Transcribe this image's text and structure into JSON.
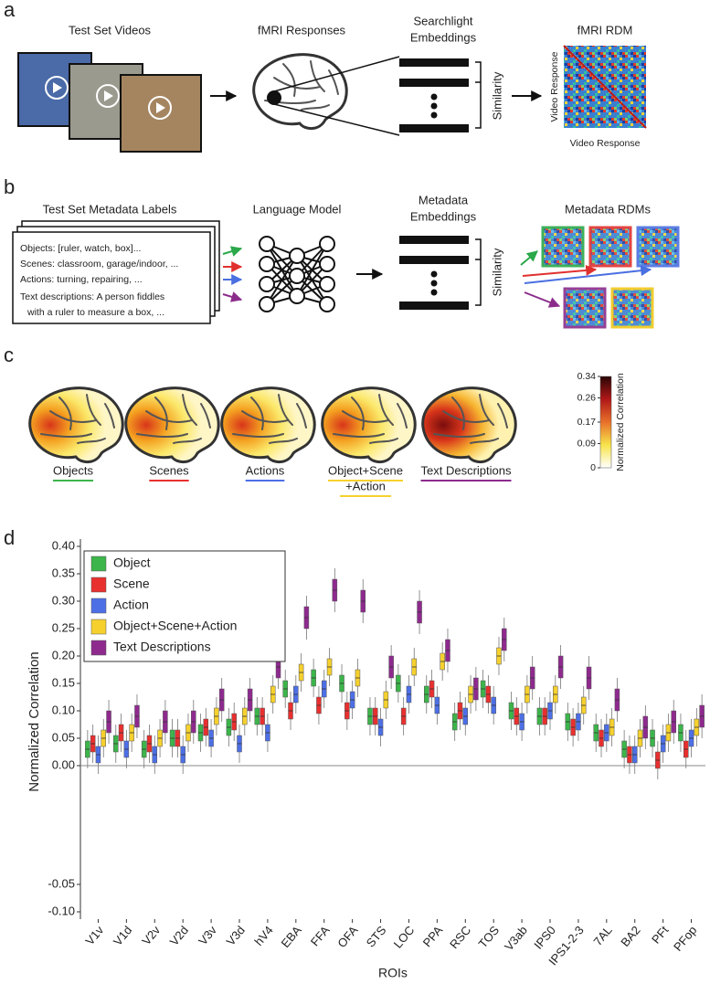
{
  "panel_a": {
    "label": "a",
    "videos_title": "Test Set Videos",
    "fmri_title": "fMRI Responses",
    "embeddings_title": [
      "Searchlight",
      "Embeddings"
    ],
    "similarity": "Similarity",
    "rdm_title": "fMRI RDM",
    "rdm_axis": "Video Response"
  },
  "panel_b": {
    "label": "b",
    "metadata_title": "Test Set Metadata Labels",
    "metadata_lines": [
      {
        "text": "Objects: [ruler, watch, box]...",
        "color": "#2aa84a"
      },
      {
        "text": "Scenes: classroom, garage/indoor, ...",
        "color": "#e0302e"
      },
      {
        "text": "Actions: turning, repairing, ...",
        "color": "#4a6fe0"
      },
      {
        "text": "Text descriptions: A person fiddles",
        "color": "#8b2c8b"
      },
      {
        "text": "with a ruler to measure a box, ...",
        "color": "#8b2c8b"
      }
    ],
    "model_title": "Language Model",
    "embeddings_title": [
      "Metadata",
      "Embeddings"
    ],
    "similarity": "Similarity",
    "rdms_title": "Metadata RDMs"
  },
  "panel_c": {
    "label": "c",
    "maps": [
      {
        "lines": [
          "Objects"
        ],
        "color": "#3cb54a"
      },
      {
        "lines": [
          "Scenes"
        ],
        "color": "#e8302f"
      },
      {
        "lines": [
          "Actions"
        ],
        "color": "#4d6fe6"
      },
      {
        "lines": [
          "Object+Scene",
          "+Action"
        ],
        "color": "#f6d12e"
      },
      {
        "lines": [
          "Text Descriptions"
        ],
        "color": "#8e2a8e"
      }
    ],
    "colorbar": {
      "label": "Normalized Correlation",
      "lim": [
        0,
        0.34
      ],
      "ticks": [
        0,
        0.09,
        0.17,
        0.26,
        0.34
      ]
    }
  },
  "chart_data": {
    "type": "box",
    "panel_label": "d",
    "ylabel": "Normalized Correlation",
    "xlabel": "ROIs",
    "categories": [
      "V1v",
      "V1d",
      "V2v",
      "V2d",
      "V3v",
      "V3d",
      "hV4",
      "EBA",
      "FFA",
      "OFA",
      "STS",
      "LOC",
      "PPA",
      "RSC",
      "TOS",
      "V3ab",
      "IPS0",
      "IPS1-2-3",
      "7AL",
      "BA2",
      "PFt",
      "PFop"
    ],
    "series": [
      {
        "name": "Object",
        "color": "#3cb54a",
        "whislo": [
          -0.005,
          0.005,
          -0.005,
          0.015,
          0.025,
          0.035,
          0.055,
          0.105,
          0.125,
          0.115,
          0.055,
          0.115,
          0.095,
          0.045,
          0.105,
          0.065,
          0.055,
          0.045,
          0.025,
          -0.005,
          0.015,
          0.025
        ],
        "q1": [
          0.015,
          0.025,
          0.015,
          0.035,
          0.045,
          0.055,
          0.075,
          0.125,
          0.145,
          0.135,
          0.075,
          0.135,
          0.115,
          0.065,
          0.125,
          0.085,
          0.075,
          0.065,
          0.045,
          0.015,
          0.035,
          0.045
        ],
        "median": [
          0.03,
          0.04,
          0.03,
          0.05,
          0.06,
          0.07,
          0.09,
          0.14,
          0.16,
          0.15,
          0.09,
          0.15,
          0.13,
          0.08,
          0.14,
          0.1,
          0.09,
          0.08,
          0.06,
          0.03,
          0.05,
          0.06
        ],
        "q3": [
          0.045,
          0.055,
          0.045,
          0.065,
          0.075,
          0.085,
          0.105,
          0.155,
          0.175,
          0.165,
          0.105,
          0.165,
          0.145,
          0.095,
          0.155,
          0.115,
          0.105,
          0.095,
          0.075,
          0.045,
          0.065,
          0.075
        ],
        "whishi": [
          0.065,
          0.075,
          0.065,
          0.085,
          0.095,
          0.105,
          0.125,
          0.175,
          0.195,
          0.185,
          0.125,
          0.185,
          0.165,
          0.115,
          0.175,
          0.135,
          0.125,
          0.115,
          0.095,
          0.065,
          0.085,
          0.095
        ]
      },
      {
        "name": "Scene",
        "color": "#e8302f",
        "whislo": [
          0.005,
          0.025,
          0.005,
          0.015,
          0.035,
          0.045,
          0.055,
          0.065,
          0.075,
          0.065,
          0.055,
          0.055,
          0.105,
          0.065,
          0.095,
          0.055,
          0.055,
          0.035,
          0.015,
          -0.015,
          -0.025,
          -0.005
        ],
        "q1": [
          0.025,
          0.045,
          0.025,
          0.035,
          0.055,
          0.065,
          0.075,
          0.085,
          0.095,
          0.085,
          0.075,
          0.075,
          0.125,
          0.085,
          0.115,
          0.075,
          0.075,
          0.055,
          0.035,
          0.005,
          -0.005,
          0.015
        ],
        "median": [
          0.04,
          0.06,
          0.04,
          0.05,
          0.07,
          0.08,
          0.09,
          0.1,
          0.11,
          0.1,
          0.09,
          0.09,
          0.14,
          0.1,
          0.13,
          0.09,
          0.09,
          0.07,
          0.05,
          0.02,
          0.01,
          0.03
        ],
        "q3": [
          0.055,
          0.075,
          0.055,
          0.065,
          0.085,
          0.095,
          0.105,
          0.115,
          0.125,
          0.115,
          0.105,
          0.105,
          0.155,
          0.115,
          0.145,
          0.105,
          0.105,
          0.085,
          0.065,
          0.035,
          0.025,
          0.045
        ],
        "whishi": [
          0.075,
          0.095,
          0.075,
          0.085,
          0.105,
          0.115,
          0.125,
          0.135,
          0.145,
          0.135,
          0.125,
          0.125,
          0.175,
          0.135,
          0.165,
          0.125,
          0.125,
          0.105,
          0.085,
          0.055,
          0.045,
          0.065
        ]
      },
      {
        "name": "Action",
        "color": "#4d6fe6",
        "whislo": [
          -0.015,
          -0.005,
          -0.015,
          -0.015,
          0.015,
          0.005,
          0.025,
          0.095,
          0.105,
          0.085,
          0.035,
          0.095,
          0.075,
          0.055,
          0.075,
          0.045,
          0.065,
          0.045,
          0.025,
          -0.015,
          0.005,
          0.015
        ],
        "q1": [
          0.005,
          0.015,
          0.005,
          0.005,
          0.035,
          0.025,
          0.045,
          0.115,
          0.125,
          0.105,
          0.055,
          0.115,
          0.095,
          0.075,
          0.095,
          0.065,
          0.085,
          0.065,
          0.045,
          0.005,
          0.025,
          0.035
        ],
        "median": [
          0.02,
          0.03,
          0.02,
          0.02,
          0.05,
          0.04,
          0.06,
          0.13,
          0.14,
          0.12,
          0.07,
          0.13,
          0.11,
          0.09,
          0.11,
          0.08,
          0.1,
          0.08,
          0.06,
          0.02,
          0.04,
          0.05
        ],
        "q3": [
          0.035,
          0.045,
          0.035,
          0.035,
          0.065,
          0.055,
          0.075,
          0.145,
          0.155,
          0.135,
          0.085,
          0.145,
          0.125,
          0.105,
          0.125,
          0.095,
          0.115,
          0.095,
          0.075,
          0.035,
          0.055,
          0.065
        ],
        "whishi": [
          0.055,
          0.065,
          0.055,
          0.055,
          0.085,
          0.075,
          0.095,
          0.165,
          0.175,
          0.155,
          0.105,
          0.165,
          0.145,
          0.125,
          0.145,
          0.115,
          0.135,
          0.115,
          0.095,
          0.055,
          0.075,
          0.085
        ]
      },
      {
        "name": "Object+Scene+Action",
        "color": "#f6d12e",
        "whislo": [
          0.015,
          0.025,
          0.015,
          0.025,
          0.055,
          0.055,
          0.095,
          0.135,
          0.145,
          0.125,
          0.085,
          0.145,
          0.155,
          0.095,
          0.165,
          0.095,
          0.095,
          0.075,
          0.035,
          0.015,
          0.025,
          0.035
        ],
        "q1": [
          0.035,
          0.045,
          0.035,
          0.045,
          0.075,
          0.075,
          0.115,
          0.155,
          0.165,
          0.145,
          0.105,
          0.165,
          0.175,
          0.115,
          0.185,
          0.115,
          0.115,
          0.095,
          0.055,
          0.035,
          0.045,
          0.055
        ],
        "median": [
          0.05,
          0.06,
          0.05,
          0.06,
          0.09,
          0.09,
          0.13,
          0.17,
          0.18,
          0.16,
          0.12,
          0.18,
          0.19,
          0.13,
          0.2,
          0.13,
          0.13,
          0.11,
          0.07,
          0.05,
          0.06,
          0.07
        ],
        "q3": [
          0.065,
          0.075,
          0.065,
          0.075,
          0.105,
          0.105,
          0.145,
          0.185,
          0.195,
          0.175,
          0.135,
          0.195,
          0.205,
          0.145,
          0.215,
          0.145,
          0.145,
          0.125,
          0.085,
          0.065,
          0.075,
          0.085
        ],
        "whishi": [
          0.085,
          0.095,
          0.085,
          0.095,
          0.125,
          0.125,
          0.165,
          0.205,
          0.215,
          0.195,
          0.155,
          0.215,
          0.225,
          0.165,
          0.235,
          0.165,
          0.165,
          0.145,
          0.105,
          0.085,
          0.095,
          0.105
        ]
      },
      {
        "name": "Text Descriptions",
        "color": "#8e2a8e",
        "whislo": [
          0.04,
          0.05,
          0.04,
          0.04,
          0.08,
          0.08,
          0.14,
          0.23,
          0.28,
          0.26,
          0.14,
          0.24,
          0.17,
          0.1,
          0.19,
          0.12,
          0.14,
          0.12,
          0.08,
          0.03,
          0.04,
          0.05
        ],
        "q1": [
          0.06,
          0.07,
          0.06,
          0.06,
          0.1,
          0.1,
          0.16,
          0.25,
          0.3,
          0.28,
          0.16,
          0.26,
          0.19,
          0.12,
          0.21,
          0.14,
          0.16,
          0.14,
          0.1,
          0.05,
          0.06,
          0.07
        ],
        "median": [
          0.08,
          0.09,
          0.08,
          0.08,
          0.12,
          0.12,
          0.18,
          0.27,
          0.32,
          0.3,
          0.18,
          0.28,
          0.21,
          0.14,
          0.23,
          0.16,
          0.18,
          0.16,
          0.12,
          0.07,
          0.08,
          0.09
        ],
        "q3": [
          0.1,
          0.11,
          0.1,
          0.1,
          0.14,
          0.14,
          0.2,
          0.29,
          0.34,
          0.32,
          0.2,
          0.3,
          0.23,
          0.16,
          0.25,
          0.18,
          0.2,
          0.18,
          0.14,
          0.09,
          0.1,
          0.11
        ],
        "whishi": [
          0.12,
          0.13,
          0.12,
          0.12,
          0.16,
          0.16,
          0.22,
          0.31,
          0.36,
          0.34,
          0.22,
          0.32,
          0.25,
          0.18,
          0.27,
          0.2,
          0.22,
          0.2,
          0.16,
          0.11,
          0.12,
          0.13
        ]
      }
    ],
    "ylim": [
      -0.04,
      0.4
    ],
    "yticks": [
      {
        "value": 0,
        "label": "0.00"
      },
      0.05,
      {
        "value": 0.1,
        "label": "0.10"
      },
      0.15,
      {
        "value": 0.2,
        "label": "0.20"
      },
      0.25,
      {
        "value": 0.3,
        "label": "0.30"
      },
      0.35,
      {
        "value": 0.4,
        "label": "0.40"
      }
    ],
    "sig_ylim": [
      -0.11,
      -0.045
    ],
    "sig_yticks": [
      -0.05,
      {
        "value": -0.1,
        "label": "-0.10"
      }
    ],
    "legend": "upper left",
    "zero_line": true
  }
}
